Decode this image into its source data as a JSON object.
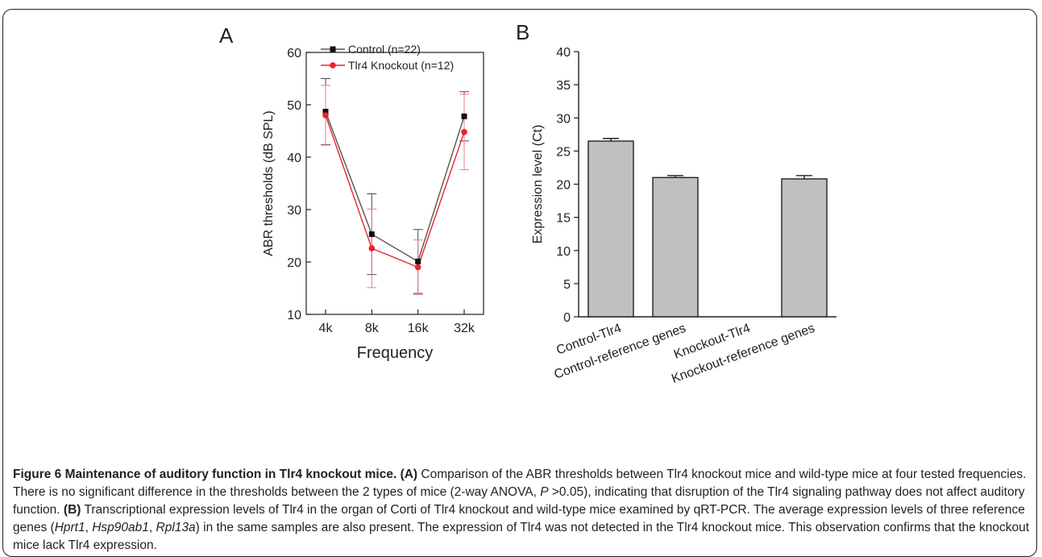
{
  "panel_a_label": "A",
  "panel_b_label": "B",
  "chart_data": [
    {
      "type": "line",
      "panel": "A",
      "x": [
        "4k",
        "8k",
        "16k",
        "32k"
      ],
      "xlabel": "Frequency",
      "ylabel": "ABR thresholds (dB SPL)",
      "ylim": [
        10,
        60
      ],
      "yticks": [
        10,
        20,
        30,
        40,
        50,
        60
      ],
      "legend_position": "top",
      "series": [
        {
          "name": "Control (n=22)",
          "color": "#555555",
          "marker": "square",
          "values": [
            48.7,
            25.3,
            20.1,
            47.8
          ],
          "errors": [
            6.3,
            7.7,
            6.1,
            4.7
          ]
        },
        {
          "name": "Tlr4 Knockout (n=12)",
          "color": "#e8232a",
          "marker": "circle",
          "values": [
            48.0,
            22.6,
            19.0,
            44.8
          ],
          "errors": [
            5.7,
            7.5,
            5.2,
            7.2
          ]
        }
      ]
    },
    {
      "type": "bar",
      "panel": "B",
      "categories": [
        "Control-Tlr4",
        "Control-reference genes",
        "Knockout-Tlr4",
        "Knockout-reference genes"
      ],
      "values": [
        26.5,
        21.0,
        0,
        20.8
      ],
      "errors": [
        0.4,
        0.3,
        0,
        0.5
      ],
      "ylabel": "Expression level (Ct)",
      "ylim": [
        0,
        40
      ],
      "yticks": [
        0,
        5,
        10,
        15,
        20,
        25,
        30,
        35,
        40
      ],
      "bar_color": "#c0c0c0"
    }
  ],
  "caption": {
    "fig_title": "Figure 6 Maintenance of auditory function in Tlr4 knockout mice.",
    "a_tag": "(A)",
    "a_text_1": " Comparison of the ABR thresholds between Tlr4 knockout mice and wild-type mice at four tested frequencies. There is no significant difference in the thresholds between the 2 types of mice (2-way ANOVA, ",
    "p_symbol": "P",
    "a_text_2": " >0.05), indicating that disruption of the Tlr4 signaling pathway does not affect auditory function. ",
    "b_tag": "(B)",
    "b_text_1": " Transcriptional expression levels of Tlr4 in the organ of Corti of Tlr4 knockout and wild-type mice examined by qRT-PCR. The average expression levels of three reference genes (",
    "gene_1": "Hprt1",
    "sep_1": ", ",
    "gene_2": "Hsp90ab1",
    "sep_2": ", ",
    "gene_3": "Rpl13a",
    "b_text_2": ") in the same samples are also present. The expression of Tlr4 was not detected in the Tlr4 knockout mice. This observation confirms that the knockout mice lack Tlr4 expression."
  }
}
